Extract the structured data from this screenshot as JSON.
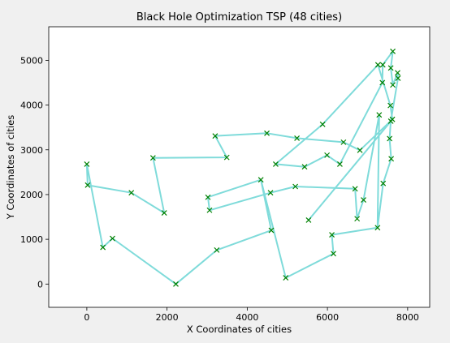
{
  "chart_data": {
    "type": "line",
    "title": "Black Hole Optimization TSP (48 cities)",
    "xlabel": "X Coordinates of cities",
    "ylabel": "Y Coordinates of cities",
    "xlim": [
      -950,
      8550
    ],
    "ylim": [
      -520,
      5750
    ],
    "xticks": [
      0,
      2000,
      4000,
      6000,
      8000
    ],
    "yticks": [
      0,
      1000,
      2000,
      3000,
      4000,
      5000
    ],
    "grid": false,
    "route_color": "#7fdbda",
    "marker_color": "#008000",
    "marker": "x",
    "route": [
      [
        0,
        2680
      ],
      [
        20,
        2210
      ],
      [
        1110,
        2040
      ],
      [
        1930,
        1590
      ],
      [
        1650,
        2820
      ],
      [
        3490,
        2830
      ],
      [
        3200,
        3310
      ],
      [
        4490,
        3370
      ],
      [
        5240,
        3260
      ],
      [
        6400,
        3170
      ],
      [
        6810,
        2990
      ],
      [
        7620,
        3680
      ],
      [
        7570,
        3990
      ],
      [
        7260,
        4900
      ],
      [
        5880,
        3570
      ],
      [
        4710,
        2680
      ],
      [
        5430,
        2620
      ],
      [
        5990,
        2880
      ],
      [
        6310,
        2680
      ],
      [
        7370,
        4500
      ],
      [
        7380,
        4900
      ],
      [
        7630,
        5200
      ],
      [
        7580,
        4830
      ],
      [
        7630,
        4450
      ],
      [
        7750,
        4720
      ],
      [
        7760,
        4600
      ],
      [
        7580,
        3640
      ],
      [
        7550,
        3250
      ],
      [
        7590,
        2800
      ],
      [
        7390,
        2250
      ],
      [
        7250,
        1260
      ],
      [
        7290,
        3780
      ],
      [
        6900,
        1880
      ],
      [
        6740,
        1460
      ],
      [
        6690,
        2130
      ],
      [
        5200,
        2180
      ],
      [
        4580,
        2040
      ],
      [
        3060,
        1650
      ],
      [
        3020,
        1940
      ],
      [
        4340,
        2330
      ],
      [
        4600,
        1200
      ],
      [
        3240,
        760
      ],
      [
        2220,
        0
      ],
      [
        640,
        1020
      ],
      [
        400,
        820
      ],
      [
        0,
        2680
      ]
    ],
    "extra_points": [
      [
        4960,
        140
      ],
      [
        5530,
        1430
      ],
      [
        6150,
        680
      ],
      [
        6110,
        1100
      ]
    ],
    "extra_route": [
      [
        5530,
        1430
      ],
      [
        7620,
        3680
      ]
    ],
    "extra_route2": [
      [
        4340,
        2330
      ],
      [
        4960,
        140
      ],
      [
        6150,
        680
      ],
      [
        6110,
        1100
      ],
      [
        7250,
        1260
      ]
    ]
  }
}
